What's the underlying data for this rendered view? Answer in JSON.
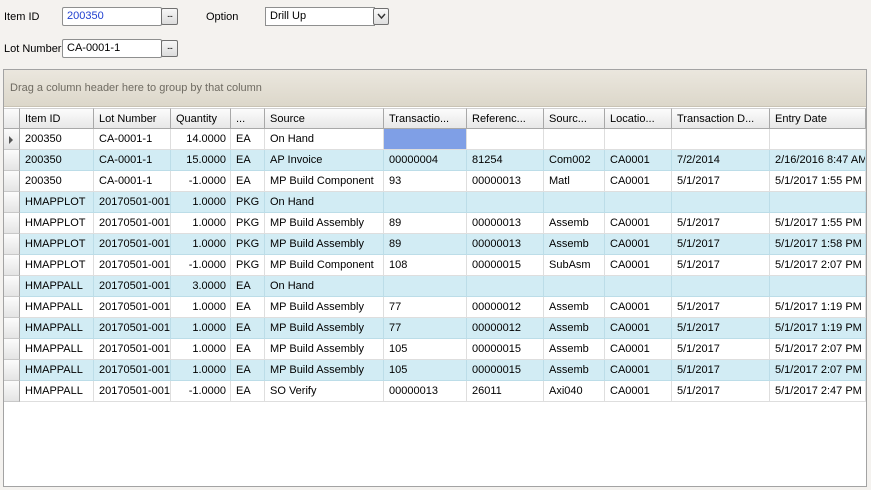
{
  "form": {
    "item_id_label": "Item ID",
    "item_id_value": "200350",
    "option_label": "Option",
    "option_value": "Drill Up",
    "lot_number_label": "Lot Number",
    "lot_number_value": "CA-0001-1",
    "lookup_glyph": "..."
  },
  "grid": {
    "group_hint": "Drag a column header here to group by that column",
    "columns": [
      "Item ID",
      "Lot Number",
      "Quantity",
      "...",
      "Source",
      "Transactio...",
      "Referenc...",
      "Sourc...",
      "Locatio...",
      "Transaction D...",
      "Entry Date"
    ],
    "rows": [
      [
        "200350",
        "CA-0001-1",
        "14.0000",
        "EA",
        "On Hand",
        "",
        "",
        "",
        "",
        "",
        ""
      ],
      [
        "200350",
        "CA-0001-1",
        "15.0000",
        "EA",
        "AP Invoice",
        "00000004",
        "81254",
        "Com002",
        "CA0001",
        "7/2/2014",
        "2/16/2016 8:47 AM"
      ],
      [
        "200350",
        "CA-0001-1",
        "-1.0000",
        "EA",
        "MP Build Component",
        "93",
        "00000013",
        "Matl",
        "CA0001",
        "5/1/2017",
        "5/1/2017 1:55 PM"
      ],
      [
        "HMAPPLOT",
        "20170501-001",
        "1.0000",
        "PKG",
        "On Hand",
        "",
        "",
        "",
        "",
        "",
        ""
      ],
      [
        "HMAPPLOT",
        "20170501-001",
        "1.0000",
        "PKG",
        "MP Build Assembly",
        "89",
        "00000013",
        "Assemb",
        "CA0001",
        "5/1/2017",
        "5/1/2017 1:55 PM"
      ],
      [
        "HMAPPLOT",
        "20170501-001",
        "1.0000",
        "PKG",
        "MP Build Assembly",
        "89",
        "00000013",
        "Assemb",
        "CA0001",
        "5/1/2017",
        "5/1/2017 1:58 PM"
      ],
      [
        "HMAPPLOT",
        "20170501-001",
        "-1.0000",
        "PKG",
        "MP Build Component",
        "108",
        "00000015",
        "SubAsm",
        "CA0001",
        "5/1/2017",
        "5/1/2017 2:07 PM"
      ],
      [
        "HMAPPALL",
        "20170501-001",
        "3.0000",
        "EA",
        "On Hand",
        "",
        "",
        "",
        "",
        "",
        ""
      ],
      [
        "HMAPPALL",
        "20170501-001",
        "1.0000",
        "EA",
        "MP Build Assembly",
        "77",
        "00000012",
        "Assemb",
        "CA0001",
        "5/1/2017",
        "5/1/2017 1:19 PM"
      ],
      [
        "HMAPPALL",
        "20170501-001",
        "1.0000",
        "EA",
        "MP Build Assembly",
        "77",
        "00000012",
        "Assemb",
        "CA0001",
        "5/1/2017",
        "5/1/2017 1:19 PM"
      ],
      [
        "HMAPPALL",
        "20170501-001",
        "1.0000",
        "EA",
        "MP Build Assembly",
        "105",
        "00000015",
        "Assemb",
        "CA0001",
        "5/1/2017",
        "5/1/2017 2:07 PM"
      ],
      [
        "HMAPPALL",
        "20170501-001",
        "1.0000",
        "EA",
        "MP Build Assembly",
        "105",
        "00000015",
        "Assemb",
        "CA0001",
        "5/1/2017",
        "5/1/2017 2:07 PM"
      ],
      [
        "HMAPPALL",
        "20170501-001",
        "-1.0000",
        "EA",
        "SO Verify",
        "00000013",
        "26011",
        "Axi040",
        "CA0001",
        "5/1/2017",
        "5/1/2017 2:47 PM"
      ]
    ],
    "colors": {
      "alt_row": "#d2ecf4",
      "focus_cell": "#7f9fe6",
      "item_id_text": "#1f3fd0"
    }
  }
}
